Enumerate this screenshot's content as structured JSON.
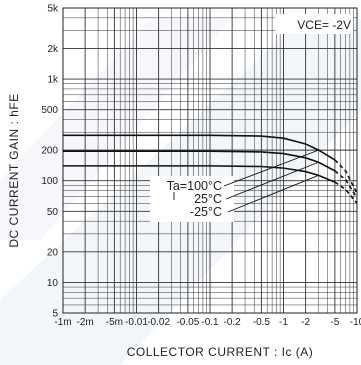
{
  "chart_data": {
    "type": "line",
    "title": "",
    "condition": "VCE= -2V",
    "xlabel": "COLLECTOR CURRENT : Ic (A)",
    "ylabel": "DC CURRENT GAIN : hFE",
    "x_scale": "log",
    "y_scale": "log",
    "xlim": [
      0.001,
      10
    ],
    "ylim": [
      5,
      5000
    ],
    "grid": true,
    "x_ticks": [
      {
        "value": 0.001,
        "label": "-1m"
      },
      {
        "value": 0.002,
        "label": "-2m"
      },
      {
        "value": 0.005,
        "label": "-5m"
      },
      {
        "value": 0.01,
        "label": "-0.01"
      },
      {
        "value": 0.02,
        "label": "-0.02"
      },
      {
        "value": 0.05,
        "label": "-0.05"
      },
      {
        "value": 0.1,
        "label": "-0.1"
      },
      {
        "value": 0.2,
        "label": "-0.2"
      },
      {
        "value": 0.5,
        "label": "-0.5"
      },
      {
        "value": 1,
        "label": "-1"
      },
      {
        "value": 2,
        "label": "-2"
      },
      {
        "value": 5,
        "label": "-5"
      },
      {
        "value": 10,
        "label": "-10"
      }
    ],
    "y_ticks": [
      {
        "value": 5,
        "label": "5"
      },
      {
        "value": 10,
        "label": "10"
      },
      {
        "value": 20,
        "label": "20"
      },
      {
        "value": 50,
        "label": "50"
      },
      {
        "value": 100,
        "label": "100"
      },
      {
        "value": 200,
        "label": "200"
      },
      {
        "value": 500,
        "label": "500"
      },
      {
        "value": 1000,
        "label": "1k"
      },
      {
        "value": 2000,
        "label": "2k"
      },
      {
        "value": 5000,
        "label": "5k"
      }
    ],
    "series": [
      {
        "name": "Ta=100°C",
        "x": [
          0.001,
          0.1,
          0.5,
          1,
          2,
          3,
          5
        ],
        "y": [
          280,
          280,
          275,
          262,
          230,
          200,
          160
        ],
        "dashed_from": 5,
        "dashed_x": [
          5,
          7,
          10
        ],
        "dashed_y": [
          160,
          125,
          75
        ]
      },
      {
        "name": "25°C",
        "x": [
          0.001,
          0.1,
          0.5,
          1,
          2,
          3,
          5
        ],
        "y": [
          195,
          195,
          192,
          185,
          168,
          152,
          125
        ],
        "dashed_x": [
          5,
          7,
          10
        ],
        "dashed_y": [
          125,
          102,
          68
        ]
      },
      {
        "name": "-25°C",
        "x": [
          0.001,
          0.1,
          0.5,
          1,
          2,
          3,
          5
        ],
        "y": [
          140,
          140,
          138,
          133,
          123,
          113,
          97
        ],
        "dashed_x": [
          5,
          7,
          10
        ],
        "dashed_y": [
          97,
          82,
          60
        ]
      }
    ],
    "annotation": {
      "lines": [
        "Ta=100°C",
        "25°C",
        "-25°C"
      ]
    }
  }
}
